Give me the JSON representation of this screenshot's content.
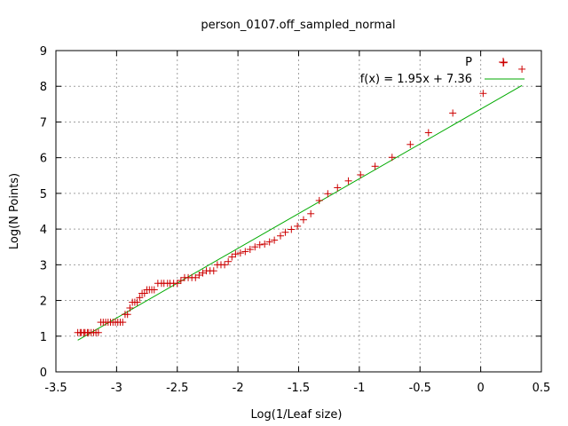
{
  "chart_data": {
    "type": "scatter",
    "title": "person_0107.off_sampled_normal",
    "xlabel": "Log(1/Leaf size)",
    "ylabel": "Log(N Points)",
    "xlim": [
      -3.5,
      0.5
    ],
    "ylim": [
      0,
      9
    ],
    "xticks": [
      -3.5,
      -3,
      -2.5,
      -2,
      -1.5,
      -1,
      -0.5,
      0,
      0.5
    ],
    "yticks": [
      0,
      1,
      2,
      3,
      4,
      5,
      6,
      7,
      8,
      9
    ],
    "xtick_labels": [
      "-3.5",
      "-3",
      "-2.5",
      "-2",
      "-1.5",
      "-1",
      "-0.5",
      "0",
      "0.5"
    ],
    "ytick_labels": [
      "0",
      "1",
      "2",
      "3",
      "4",
      "5",
      "6",
      "7",
      "8",
      "9"
    ],
    "grid": true,
    "legend_position": "top-right",
    "series": [
      {
        "name": "P",
        "kind": "points",
        "marker": "plus",
        "color": "#cc0000",
        "points": [
          [
            -3.32,
            1.1
          ],
          [
            -3.3,
            1.1
          ],
          [
            -3.29,
            1.1
          ],
          [
            -3.27,
            1.1
          ],
          [
            -3.26,
            1.1
          ],
          [
            -3.24,
            1.1
          ],
          [
            -3.23,
            1.1
          ],
          [
            -3.21,
            1.1
          ],
          [
            -3.19,
            1.1
          ],
          [
            -3.17,
            1.1
          ],
          [
            -3.15,
            1.1
          ],
          [
            -3.13,
            1.39
          ],
          [
            -3.11,
            1.39
          ],
          [
            -3.09,
            1.39
          ],
          [
            -3.07,
            1.39
          ],
          [
            -3.05,
            1.39
          ],
          [
            -3.03,
            1.39
          ],
          [
            -3.01,
            1.39
          ],
          [
            -2.99,
            1.39
          ],
          [
            -2.97,
            1.39
          ],
          [
            -2.95,
            1.39
          ],
          [
            -2.93,
            1.61
          ],
          [
            -2.91,
            1.61
          ],
          [
            -2.89,
            1.79
          ],
          [
            -2.87,
            1.95
          ],
          [
            -2.85,
            1.95
          ],
          [
            -2.83,
            1.95
          ],
          [
            -2.81,
            2.08
          ],
          [
            -2.79,
            2.2
          ],
          [
            -2.77,
            2.2
          ],
          [
            -2.75,
            2.3
          ],
          [
            -2.73,
            2.3
          ],
          [
            -2.71,
            2.3
          ],
          [
            -2.69,
            2.3
          ],
          [
            -2.66,
            2.48
          ],
          [
            -2.63,
            2.48
          ],
          [
            -2.61,
            2.48
          ],
          [
            -2.58,
            2.48
          ],
          [
            -2.56,
            2.48
          ],
          [
            -2.53,
            2.48
          ],
          [
            -2.5,
            2.48
          ],
          [
            -2.47,
            2.56
          ],
          [
            -2.44,
            2.64
          ],
          [
            -2.41,
            2.64
          ],
          [
            -2.38,
            2.64
          ],
          [
            -2.35,
            2.64
          ],
          [
            -2.32,
            2.71
          ],
          [
            -2.29,
            2.77
          ],
          [
            -2.26,
            2.83
          ],
          [
            -2.23,
            2.83
          ],
          [
            -2.2,
            2.83
          ],
          [
            -2.17,
            3.0
          ],
          [
            -2.14,
            3.0
          ],
          [
            -2.11,
            3.0
          ],
          [
            -2.08,
            3.09
          ],
          [
            -2.05,
            3.22
          ],
          [
            -2.02,
            3.3
          ],
          [
            -1.98,
            3.33
          ],
          [
            -1.94,
            3.37
          ],
          [
            -1.9,
            3.43
          ],
          [
            -1.86,
            3.5
          ],
          [
            -1.82,
            3.56
          ],
          [
            -1.78,
            3.58
          ],
          [
            -1.74,
            3.64
          ],
          [
            -1.7,
            3.69
          ],
          [
            -1.65,
            3.81
          ],
          [
            -1.61,
            3.91
          ],
          [
            -1.56,
            3.99
          ],
          [
            -1.51,
            4.08
          ],
          [
            -1.46,
            4.26
          ],
          [
            -1.4,
            4.43
          ],
          [
            -1.33,
            4.8
          ],
          [
            -1.26,
            4.99
          ],
          [
            -1.18,
            5.16
          ],
          [
            -1.09,
            5.35
          ],
          [
            -0.99,
            5.52
          ],
          [
            -0.87,
            5.76
          ],
          [
            -0.73,
            6.01
          ],
          [
            -0.58,
            6.37
          ],
          [
            -0.43,
            6.7
          ],
          [
            -0.23,
            7.25
          ],
          [
            0.02,
            7.8
          ],
          [
            0.19,
            8.66
          ],
          [
            0.34,
            8.48
          ]
        ]
      },
      {
        "name": "f(x) = 1.95x + 7.36",
        "kind": "line",
        "color": "#00aa00",
        "slope": 1.95,
        "intercept": 7.36,
        "x_range": [
          -3.32,
          0.34
        ]
      }
    ]
  }
}
